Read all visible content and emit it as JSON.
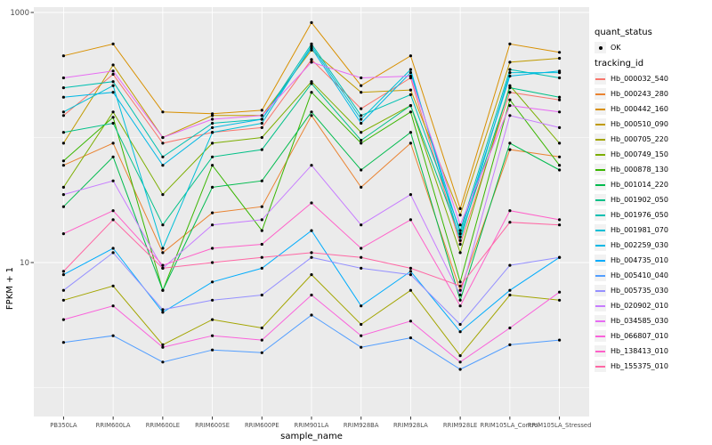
{
  "figure": {
    "ylabel": "FPKM + 1",
    "xlabel": "sample_name",
    "legend": {
      "quant_status_title": "quant_status",
      "quant_status_item": "OK",
      "tracking_id_title": "tracking_id"
    }
  },
  "chart_data": {
    "type": "line",
    "title": "",
    "xlabel": "sample_name",
    "ylabel": "FPKM + 1",
    "y_scale": "log10",
    "y_ticks": [
      10,
      1000
    ],
    "y_minor_gridlines": [
      1,
      100
    ],
    "ylim": [
      0.6,
      1100
    ],
    "grid": true,
    "legend_position": "right",
    "panel_bg": "#EBEBEB",
    "grid_color": "#FFFFFF",
    "point_color": "#000000",
    "tick_label_color": "#4D4D4D",
    "categories": [
      "PB350LA",
      "RRIM600LA",
      "RRIM600LE",
      "RRIM600SE",
      "RRIM600PE",
      "RRIM901LA",
      "RRIM928BA",
      "RRIM928LA",
      "RRIM928LE",
      "RRIM105LA_Control",
      "RRIM105LA_Stressed"
    ],
    "quant_status": [
      "OK"
    ],
    "series": [
      {
        "name": "Hb_000032_540",
        "color": "#F8766D",
        "values": [
          150,
          320,
          90,
          110,
          120,
          420,
          170,
          300,
          14,
          230,
          200
        ]
      },
      {
        "name": "Hb_000243_280",
        "color": "#EA8331",
        "values": [
          60,
          90,
          12,
          25,
          28,
          150,
          40,
          90,
          6,
          80,
          70
        ]
      },
      {
        "name": "Hb_000442_160",
        "color": "#D89000",
        "values": [
          450,
          560,
          160,
          155,
          165,
          830,
          260,
          450,
          27,
          560,
          480
        ]
      },
      {
        "name": "Hb_000510_090",
        "color": "#C09B00",
        "values": [
          90,
          380,
          100,
          150,
          150,
          500,
          230,
          240,
          24,
          400,
          430
        ]
      },
      {
        "name": "Hb_000705_220",
        "color": "#A3A500",
        "values": [
          5,
          6.5,
          2.2,
          3.5,
          3,
          8,
          3.2,
          6,
          1.8,
          5.5,
          5
        ]
      },
      {
        "name": "Hb_000749_150",
        "color": "#7CAE00",
        "values": [
          40,
          160,
          35,
          90,
          100,
          280,
          110,
          180,
          12,
          260,
          90
        ]
      },
      {
        "name": "Hb_000878_130",
        "color": "#39B600",
        "values": [
          65,
          145,
          6,
          60,
          18,
          230,
          90,
          160,
          7,
          200,
          60
        ]
      },
      {
        "name": "Hb_001014_220",
        "color": "#00BB4E",
        "values": [
          28,
          70,
          6,
          40,
          45,
          160,
          55,
          110,
          5,
          90,
          55
        ]
      },
      {
        "name": "Hb_001902_050",
        "color": "#00C087",
        "values": [
          110,
          130,
          20,
          70,
          80,
          270,
          95,
          180,
          16,
          250,
          210
        ]
      },
      {
        "name": "Hb_001976_050",
        "color": "#00C0B2",
        "values": [
          250,
          280,
          70,
          130,
          140,
          560,
          150,
          220,
          18,
          350,
          300
        ]
      },
      {
        "name": "Hb_001981_070",
        "color": "#00BFD6",
        "values": [
          160,
          260,
          13,
          110,
          130,
          540,
          140,
          350,
          15,
          330,
          330
        ]
      },
      {
        "name": "Hb_002259_030",
        "color": "#00B8E5",
        "values": [
          210,
          230,
          60,
          120,
          140,
          520,
          130,
          330,
          17,
          310,
          340
        ]
      },
      {
        "name": "Hb_004735_010",
        "color": "#00ACFC",
        "values": [
          8,
          13,
          4,
          7,
          9,
          18,
          4.5,
          8.5,
          2.8,
          6,
          11
        ]
      },
      {
        "name": "Hb_005410_040",
        "color": "#529EFF",
        "values": [
          2.3,
          2.6,
          1.6,
          2,
          1.9,
          3.8,
          2.1,
          2.5,
          1.4,
          2.2,
          2.4
        ]
      },
      {
        "name": "Hb_005735_030",
        "color": "#9590FF",
        "values": [
          6,
          12,
          4.2,
          5,
          5.5,
          11,
          9,
          8,
          3.2,
          9.5,
          11
        ]
      },
      {
        "name": "Hb_020902_010",
        "color": "#C77CFF",
        "values": [
          35,
          45,
          9,
          20,
          22,
          60,
          20,
          35,
          5.5,
          150,
          120
        ]
      },
      {
        "name": "Hb_034585_030",
        "color": "#E76BF3",
        "values": [
          300,
          340,
          100,
          140,
          150,
          400,
          300,
          310,
          20,
          180,
          160
        ]
      },
      {
        "name": "Hb_066807_010",
        "color": "#FA62DB",
        "values": [
          3.5,
          4.5,
          2.1,
          2.6,
          2.4,
          5.5,
          2.6,
          3.4,
          1.6,
          3,
          5.8
        ]
      },
      {
        "name": "Hb_138413_010",
        "color": "#FF61C9",
        "values": [
          17,
          26,
          9.5,
          13,
          14,
          30,
          13,
          22,
          4.5,
          26,
          22
        ]
      },
      {
        "name": "Hb_155375_010",
        "color": "#FF67A4",
        "values": [
          8.5,
          22,
          9,
          10,
          11,
          12,
          11,
          9,
          6.5,
          21,
          20
        ]
      }
    ]
  }
}
